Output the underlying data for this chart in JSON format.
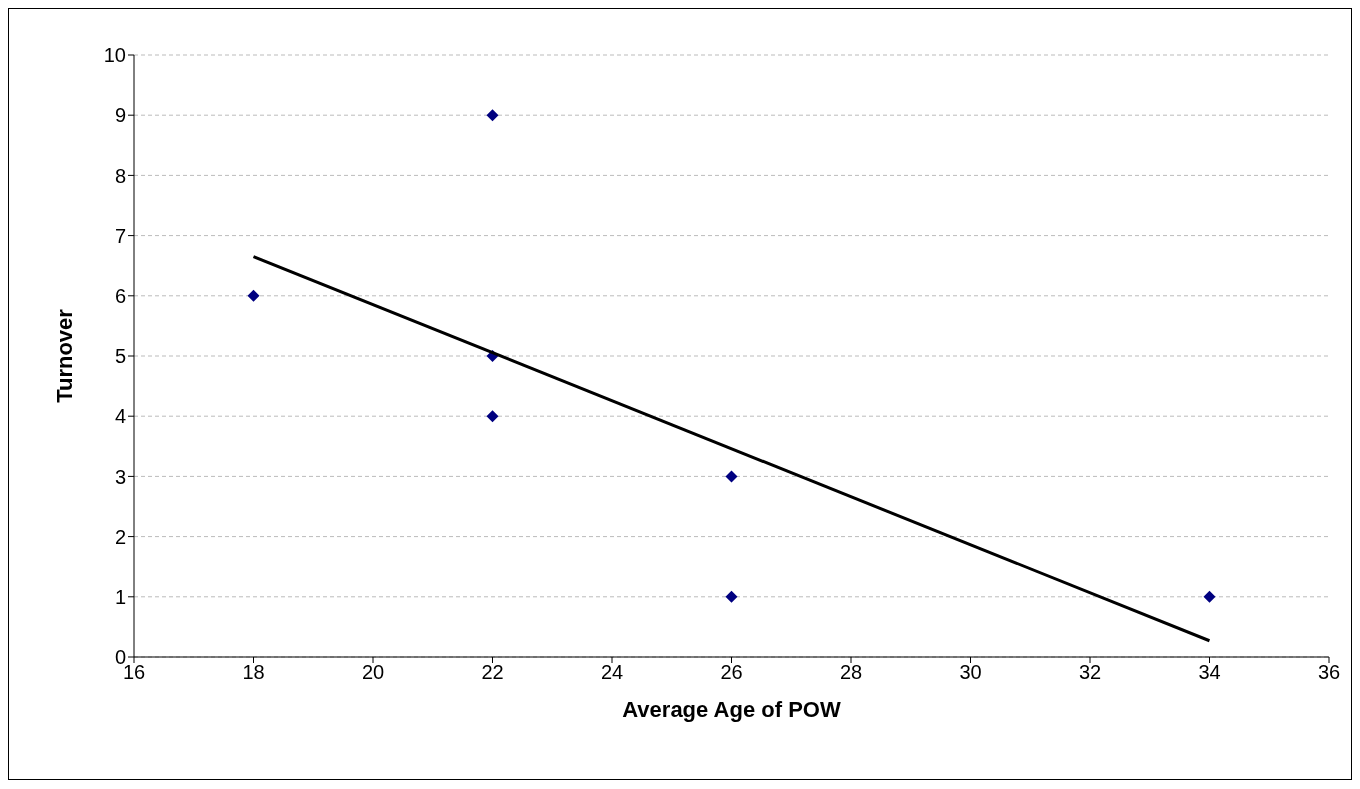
{
  "chart_data": {
    "type": "scatter",
    "xlabel": "Average Age of POW",
    "ylabel": "Turnover",
    "xlim": [
      16,
      36
    ],
    "xticks": [
      16,
      18,
      20,
      22,
      24,
      26,
      28,
      30,
      32,
      34,
      36
    ],
    "ylim": [
      0,
      10
    ],
    "yticks": [
      0,
      1,
      2,
      3,
      4,
      5,
      6,
      7,
      8,
      9,
      10
    ],
    "grid": "y",
    "series": [
      {
        "type": "scatter",
        "marker": "diamond",
        "color": "#000080",
        "x": [
          18,
          22,
          22,
          22,
          26,
          26,
          34
        ],
        "values": [
          6,
          9,
          5,
          4,
          3,
          1,
          1
        ]
      },
      {
        "type": "line",
        "marker": "none",
        "color": "#000000",
        "x": [
          18,
          34
        ],
        "values": [
          6.65,
          0.27
        ]
      }
    ]
  }
}
